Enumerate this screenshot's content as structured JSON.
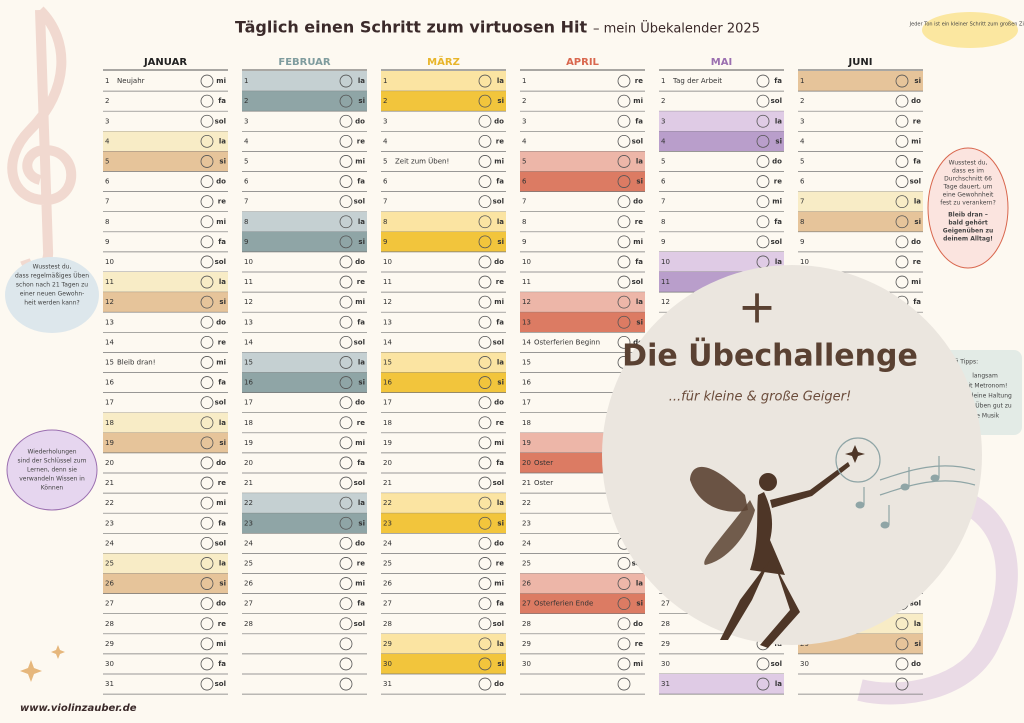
{
  "header": {
    "title": "Täglich einen Schritt zum virtuosen Hit",
    "subtitle": "– mein Übekalender 2025"
  },
  "months": [
    {
      "name": "JANUAR",
      "name_color": "#222222",
      "la_color": "#f8ecc6",
      "si_color": "#e6c49a",
      "first_syllable": 2,
      "length": 31,
      "notes": [
        {
          "day": 1,
          "text": "Neujahr"
        },
        {
          "day": 15,
          "text": "Bleib dran!"
        }
      ]
    },
    {
      "name": "FEBRUAR",
      "name_color": "#7f9c9e",
      "la_color": "#c5d0d2",
      "si_color": "#8fa5a6",
      "first_syllable": 5,
      "length": 28,
      "notes": []
    },
    {
      "name": "MÄRZ",
      "name_color": "#e8b52a",
      "la_color": "#fbe4a2",
      "si_color": "#f2c53c",
      "first_syllable": 5,
      "length": 31,
      "notes": [
        {
          "day": 5,
          "text": "Zeit zum Üben!"
        }
      ]
    },
    {
      "name": "APRIL",
      "name_color": "#d9674e",
      "la_color": "#edb6a8",
      "si_color": "#dc7b63",
      "first_syllable": 1,
      "length": 30,
      "notes": [
        {
          "day": 14,
          "text": "Osterferien Beginn"
        },
        {
          "day": 20,
          "text": "Oster"
        },
        {
          "day": 21,
          "text": "Oster"
        },
        {
          "day": 27,
          "text": "Osterferien Ende"
        }
      ]
    },
    {
      "name": "MAI",
      "name_color": "#9b6fb0",
      "la_color": "#dfcbe5",
      "si_color": "#b99ecb",
      "first_syllable": 3,
      "length": 31,
      "notes": [
        {
          "day": 1,
          "text": "Tag der Arbeit"
        }
      ]
    },
    {
      "name": "JUNI",
      "name_color": "#222222",
      "la_color": "#f8ecc6",
      "si_color": "#e6c49a",
      "first_syllable": 6,
      "length": 30,
      "notes": []
    }
  ],
  "syllables": [
    "do",
    "re",
    "mi",
    "fa",
    "sol",
    "la",
    "si"
  ],
  "tips": {
    "top_right": "Jeder Ton ist ein kleiner Schritt zum großen Ziel!",
    "right": [
      "Wusstest du,",
      "dass es im",
      "Durchschnitt 66",
      "Tage dauert, um",
      "eine Gewohnheit",
      "fest zu verankern?"
    ],
    "right_bold": [
      "Bleib dran –",
      "bald gehört",
      "Geigenüben zu",
      "deinem Alltag!"
    ],
    "left": [
      "Wusstest du,",
      "dass regelmäßiges Üben",
      "schon nach 21 Tagen zu",
      "einer neuen Gewohn-",
      "heit werden kann?"
    ],
    "left_bottom": [
      "Wiederholungen",
      "sind der Schlüssel zum",
      "Lernen, denn sie",
      "verwandeln Wissen in",
      "Können"
    ],
    "profi_title": "Profi Tipps:",
    "profi": [
      "langsam",
      "mit Metronom!",
      "auf deine Haltung",
      "beim Üben gut zu",
      "die Musik"
    ]
  },
  "overlay": {
    "plus": "+",
    "title": "Die Übechallenge",
    "subtitle": "...für kleine & große Geiger!"
  },
  "footer": "www.violinzauber.de"
}
